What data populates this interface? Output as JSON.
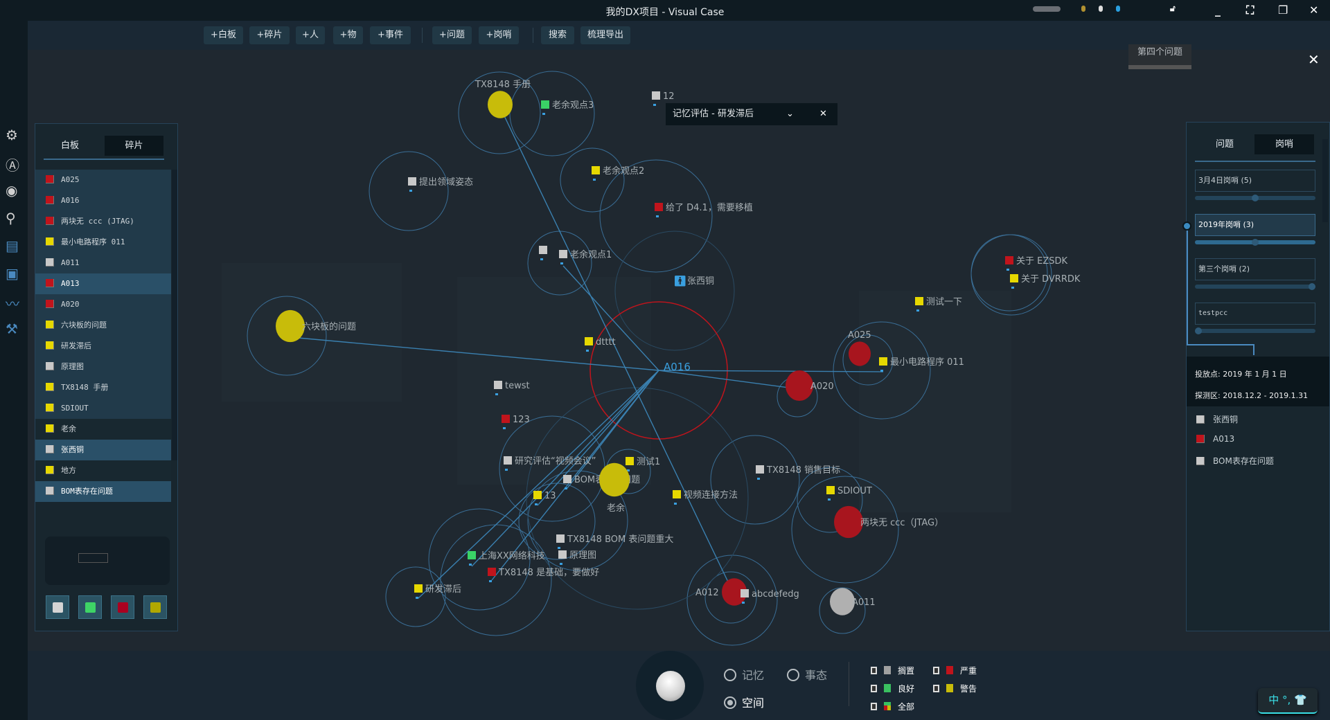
{
  "window": {
    "title": "我的DX项目 - Visual Case"
  },
  "toolbar": {
    "buttons": [
      "+白板",
      "+碎片",
      "+人",
      "+物",
      "+事件",
      "+问题",
      "+岗哨",
      "搜索",
      "梳理导出"
    ]
  },
  "rail_icons": [
    "gear-icon",
    "account-icon",
    "target-icon",
    "search-icon",
    "documents-icon",
    "chip-icon",
    "chart-icon",
    "tools-icon"
  ],
  "left_panel": {
    "tabs": [
      {
        "label": "白板",
        "active": false
      },
      {
        "label": "碎片",
        "active": true
      }
    ],
    "items": [
      {
        "label": "A025",
        "color": "#c0141c",
        "state": "normal"
      },
      {
        "label": "A016",
        "color": "#c0141c",
        "state": "normal"
      },
      {
        "label": "两块无 ccc (JTAG)",
        "color": "#c0141c",
        "state": "normal"
      },
      {
        "label": "最小电路程序 011",
        "color": "#e6d800",
        "state": "normal"
      },
      {
        "label": "A011",
        "color": "#c8c8c8",
        "state": "normal"
      },
      {
        "label": "A013",
        "color": "#c0141c",
        "state": "selected"
      },
      {
        "label": "A020",
        "color": "#c0141c",
        "state": "normal"
      },
      {
        "label": "六块板的问题",
        "color": "#e6d800",
        "state": "normal"
      },
      {
        "label": "研发滞后",
        "color": "#e6d800",
        "state": "normal"
      },
      {
        "label": "原理图",
        "color": "#c8c8c8",
        "state": "normal"
      },
      {
        "label": "TX8148 手册",
        "color": "#e6d800",
        "state": "normal"
      },
      {
        "label": "SDIOUT",
        "color": "#e6d800",
        "state": "normal"
      },
      {
        "label": "老余",
        "color": "#e6d800",
        "state": "dim"
      },
      {
        "label": "张西铜",
        "color": "#c8c8c8",
        "state": "selected"
      },
      {
        "label": "地方",
        "color": "#e6d800",
        "state": "dim"
      },
      {
        "label": "BOM表存在问题",
        "color": "#c8c8c8",
        "state": "selected"
      }
    ],
    "color_filters": [
      "#d4d4d4",
      "#3ed466",
      "#aa0020",
      "#b0a800"
    ]
  },
  "canvas": {
    "floating_tab": "第四个问题",
    "popup": {
      "title": "记忆评估 - 研发滞后"
    },
    "center_label": "A016",
    "nodes": [
      {
        "label": "TX8148 手册",
        "kind": "circle",
        "color": "#c8bc0a"
      },
      {
        "label": "老余观点3",
        "kind": "marker",
        "color": "#3ad266"
      },
      {
        "label": "12",
        "kind": "marker",
        "color": "#c8c8c8"
      },
      {
        "label": "提出领域姿态",
        "kind": "marker",
        "color": "#c8c8c8"
      },
      {
        "label": "老余观点2",
        "kind": "marker",
        "color": "#e6d800"
      },
      {
        "label": "给了 D4.1，需要移植",
        "kind": "marker",
        "color": "#c0141c"
      },
      {
        "label": "张西铜",
        "kind": "person",
        "color": "#3aa0e0"
      },
      {
        "label": "",
        "kind": "marker",
        "color": "#c8c8c8"
      },
      {
        "label": "老余观点1",
        "kind": "marker",
        "color": "#c8c8c8"
      },
      {
        "label": "六块板的问题",
        "kind": "circle",
        "color": "#c8bc0a"
      },
      {
        "label": "dtttt",
        "kind": "marker",
        "color": "#e6d800"
      },
      {
        "label": "tewst",
        "kind": "marker",
        "color": "#c8c8c8"
      },
      {
        "label": "123",
        "kind": "marker",
        "color": "#c0141c"
      },
      {
        "label": "研究评估“视频会议”",
        "kind": "marker",
        "color": "#c8c8c8"
      },
      {
        "label": "测试1",
        "kind": "marker",
        "color": "#e6d800"
      },
      {
        "label": "BOM表存在问题",
        "kind": "marker",
        "color": "#c8c8c8",
        "label_color": "#3aa0e0"
      },
      {
        "label": "老余",
        "kind": "circle",
        "color": "#c8bc0a"
      },
      {
        "label": "13",
        "kind": "marker",
        "color": "#e6d800"
      },
      {
        "label": "视频连接方法",
        "kind": "marker",
        "color": "#e6d800"
      },
      {
        "label": "TX8148 销售目标",
        "kind": "marker",
        "color": "#c8c8c8"
      },
      {
        "label": "SDIOUT",
        "kind": "marker",
        "color": "#e6d800"
      },
      {
        "label": "两块无 ccc（JTAG）",
        "kind": "circle",
        "color": "#a8151e"
      },
      {
        "label": "TX8148 BOM 表问题重大",
        "kind": "marker",
        "color": "#c8c8c8"
      },
      {
        "label": "原理图",
        "kind": "marker",
        "color": "#c8c8c8"
      },
      {
        "label": "上海XX网络科技",
        "kind": "marker",
        "color": "#3ad266"
      },
      {
        "label": "TX8148 是基础，要做好",
        "kind": "marker",
        "color": "#c0141c"
      },
      {
        "label": "研发滞后",
        "kind": "marker",
        "color": "#e6d800"
      },
      {
        "label": "A012",
        "kind": "circle",
        "color": "#a8151e"
      },
      {
        "label": "abcdefedg",
        "kind": "marker",
        "color": "#c8c8c8"
      },
      {
        "label": "A011",
        "kind": "circle",
        "color": "#b0b0b0"
      },
      {
        "label": "测试一下",
        "kind": "marker",
        "color": "#e6d800"
      },
      {
        "label": "关于 EZSDK",
        "kind": "marker",
        "color": "#c0141c"
      },
      {
        "label": "关于 DVRRDK",
        "kind": "marker",
        "color": "#e6d800"
      },
      {
        "label": "A025",
        "kind": "circle",
        "color": "#a8151e"
      },
      {
        "label": "最小电路程序 011",
        "kind": "marker",
        "color": "#e6d800"
      },
      {
        "label": "A020",
        "kind": "circle",
        "color": "#a8151e"
      }
    ]
  },
  "right_panel": {
    "tabs": [
      {
        "label": "问题",
        "active": false
      },
      {
        "label": "岗哨",
        "active": true
      }
    ],
    "sentries": [
      {
        "label": "3月4日岗哨 (5)",
        "progress": 0.5,
        "selected": false
      },
      {
        "label": "2019年岗哨 (3)",
        "progress": 0.5,
        "selected": true
      },
      {
        "label": "第三个岗哨 (2)",
        "progress": 1.0,
        "selected": false
      },
      {
        "label": "testpcc",
        "progress": 0.0,
        "selected": false
      }
    ],
    "info": {
      "drop_point": "投放点: 2019 年 1 月 1 日",
      "detect_range": "探测区: 2018.12.2 - 2019.1.31"
    },
    "items": [
      {
        "label": "张西铜",
        "color": "#c8c8c8"
      },
      {
        "label": "A013",
        "color": "#c0141c"
      },
      {
        "label": "BOM表存在问题",
        "color": "#c8c8c8"
      }
    ]
  },
  "bottom": {
    "modes": [
      {
        "label": "记忆",
        "selected": false
      },
      {
        "label": "事态",
        "selected": false
      },
      {
        "label": "空间",
        "selected": true
      }
    ],
    "legend": [
      {
        "label": "搁置",
        "color": "#a0a0a0"
      },
      {
        "label": "严重",
        "color": "#c0141c"
      },
      {
        "label": "良好",
        "color": "#3ac060"
      },
      {
        "label": "警告",
        "color": "#c8bc0a"
      },
      {
        "label": "全部",
        "color": "mixed"
      }
    ],
    "ime": "中 °, 👕"
  }
}
